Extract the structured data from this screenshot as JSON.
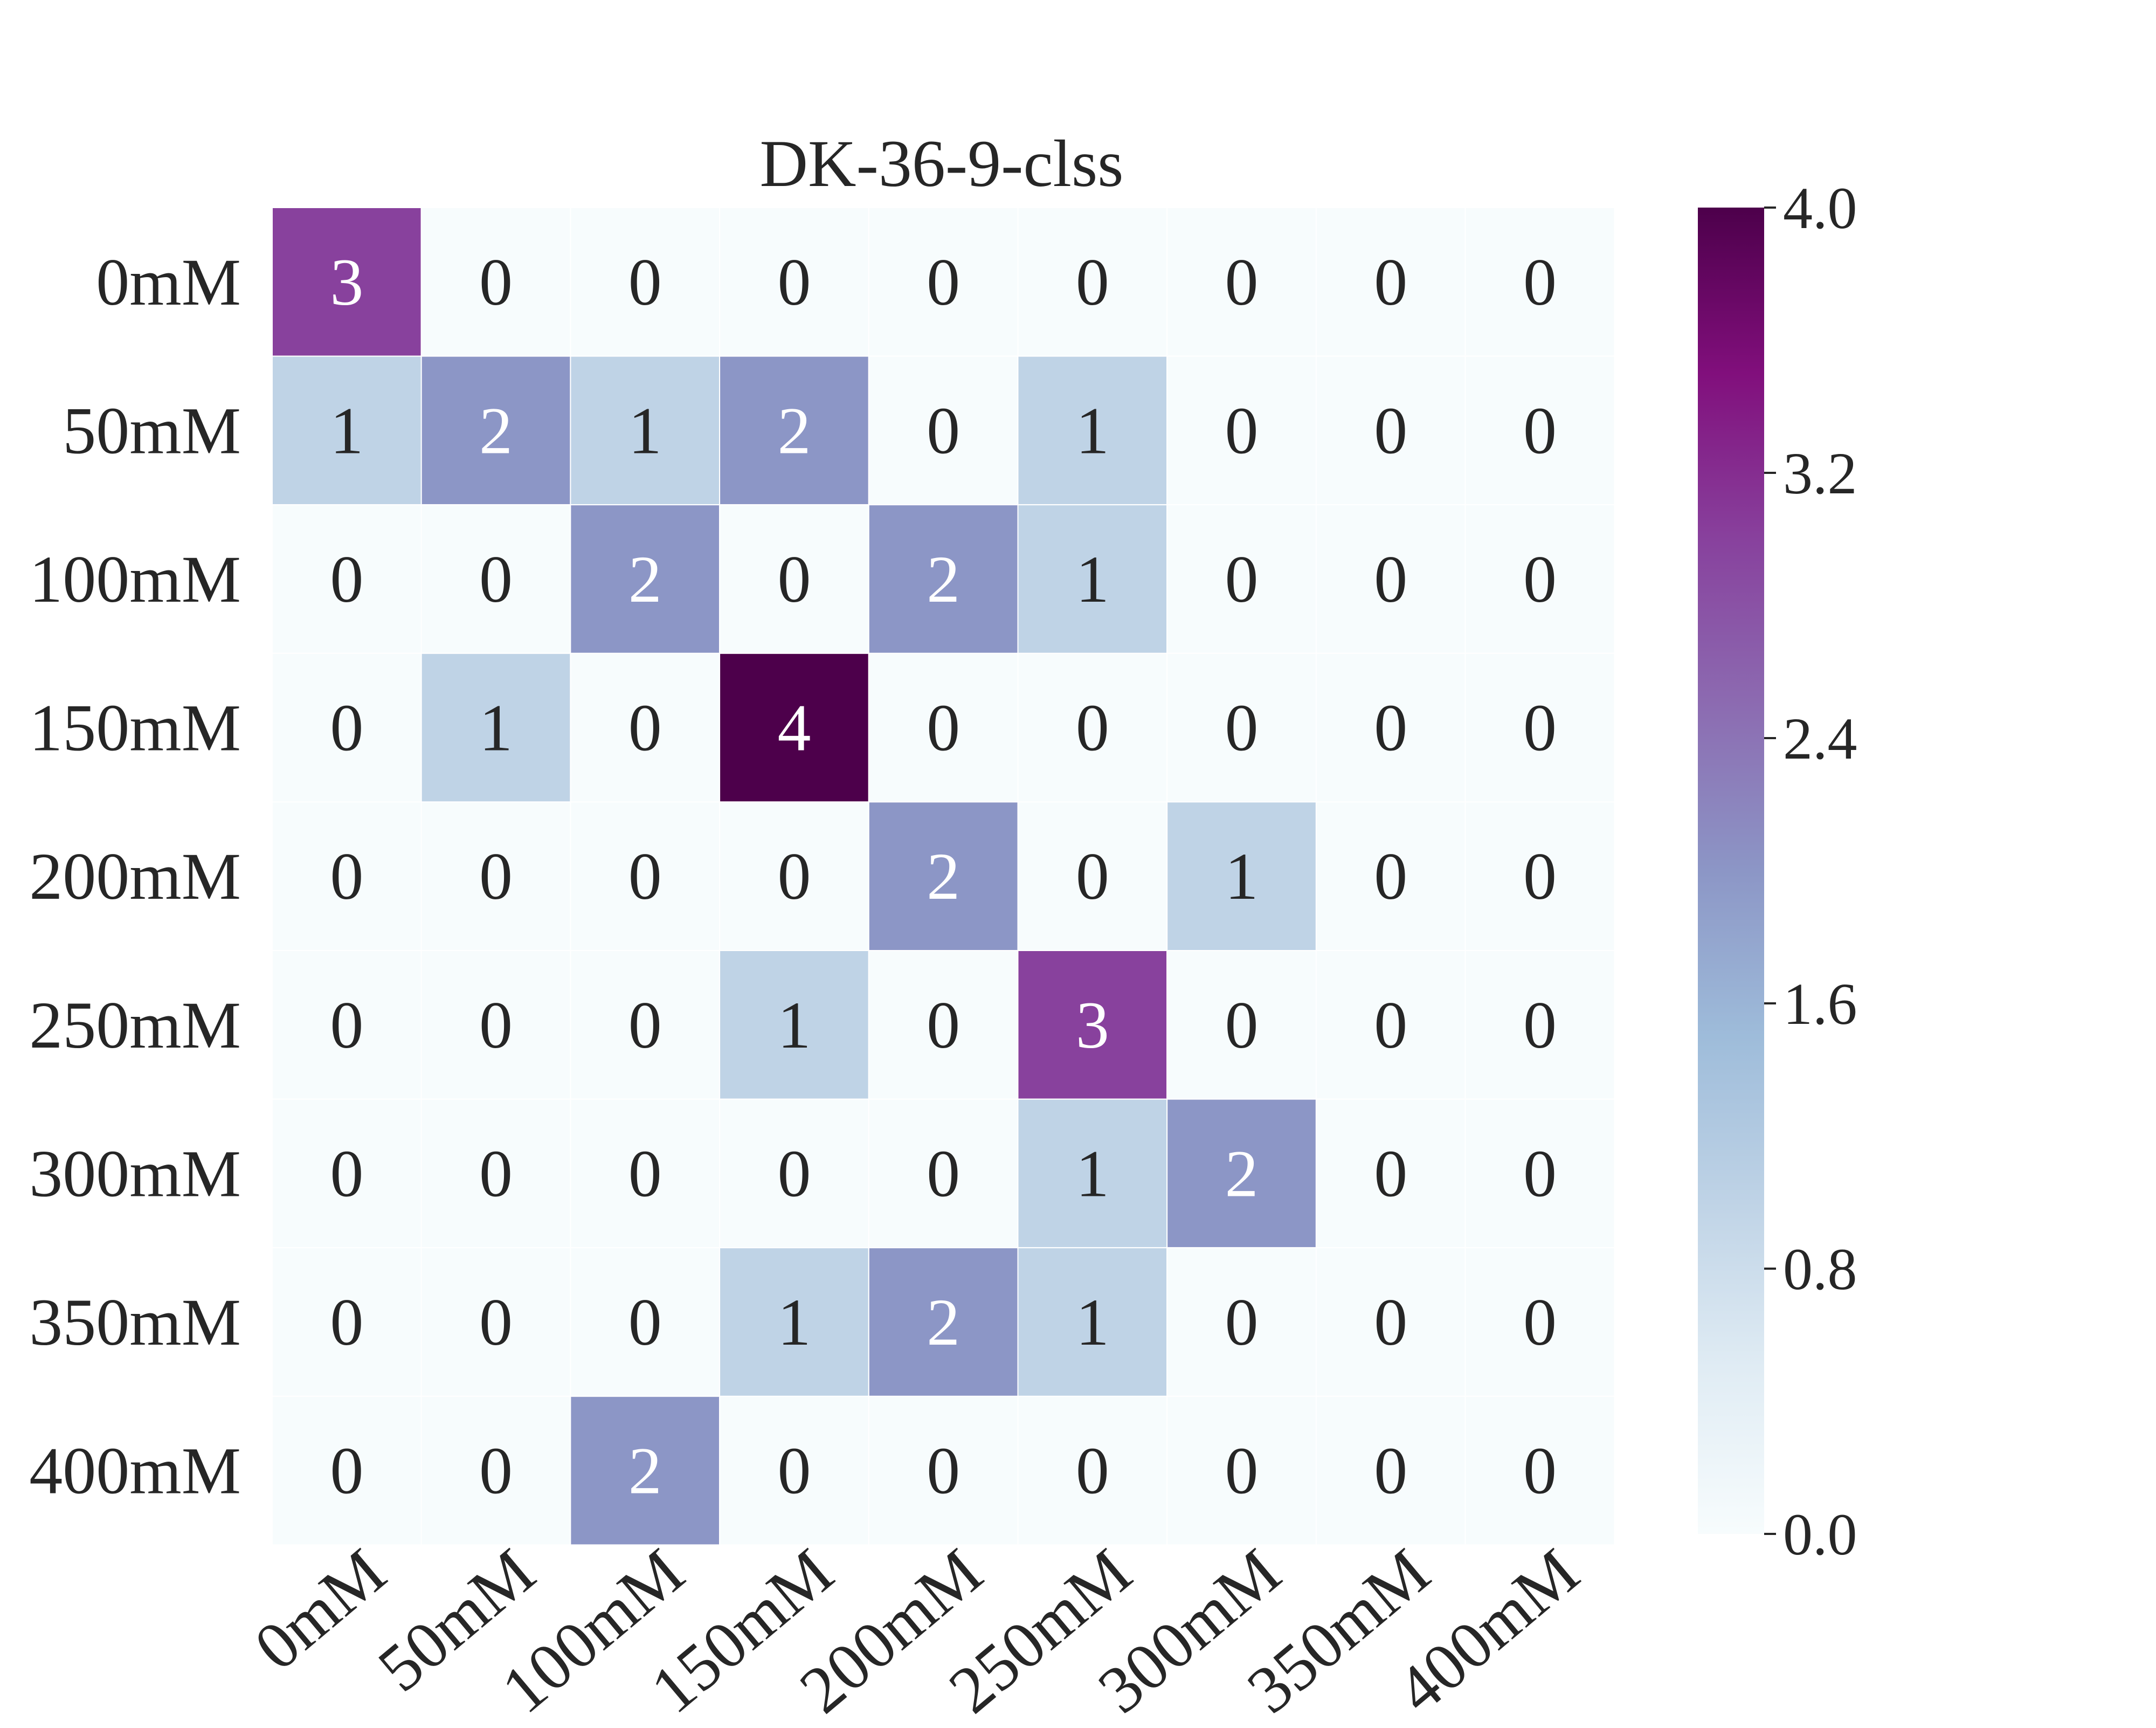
{
  "chart_data": {
    "type": "heatmap",
    "title": "DK-36-9-clss",
    "xlabel": "",
    "ylabel": "",
    "x_categories": [
      "0mM",
      "50mM",
      "100mM",
      "150mM",
      "200mM",
      "250mM",
      "300mM",
      "350mM",
      "400mM"
    ],
    "y_categories": [
      "0mM",
      "50mM",
      "100mM",
      "150mM",
      "200mM",
      "250mM",
      "300mM",
      "350mM",
      "400mM"
    ],
    "values": [
      [
        3,
        0,
        0,
        0,
        0,
        0,
        0,
        0,
        0
      ],
      [
        1,
        2,
        1,
        2,
        0,
        1,
        0,
        0,
        0
      ],
      [
        0,
        0,
        2,
        0,
        2,
        1,
        0,
        0,
        0
      ],
      [
        0,
        1,
        0,
        4,
        0,
        0,
        0,
        0,
        0
      ],
      [
        0,
        0,
        0,
        0,
        2,
        0,
        1,
        0,
        0
      ],
      [
        0,
        0,
        0,
        1,
        0,
        3,
        0,
        0,
        0
      ],
      [
        0,
        0,
        0,
        0,
        0,
        1,
        2,
        0,
        0
      ],
      [
        0,
        0,
        0,
        1,
        2,
        1,
        0,
        0,
        0
      ],
      [
        0,
        0,
        2,
        0,
        0,
        0,
        0,
        0,
        0
      ]
    ],
    "colorbar": {
      "min": 0.0,
      "max": 4.0,
      "ticks": [
        "0.0",
        "0.8",
        "1.6",
        "2.4",
        "3.2",
        "4.0"
      ],
      "colormap": "BuPu"
    },
    "colors": {
      "0": "#f7fcfd",
      "1": "#bfd3e6",
      "2": "#8c96c6",
      "3": "#88419d",
      "4": "#4d004b"
    }
  }
}
